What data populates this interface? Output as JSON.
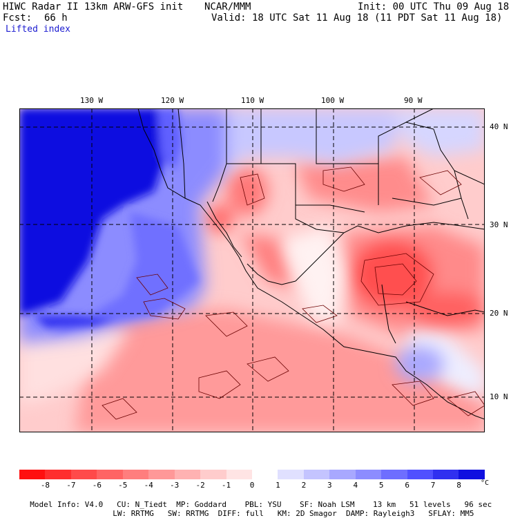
{
  "header": {
    "title": "HIWC Radar II 13km ARW-GFS init",
    "org": "NCAR/MMM",
    "init": "Init: 00 UTC Thu 09 Aug 18",
    "fcst_label": "Fcst:",
    "fcst_value": "66 h",
    "valid": "Valid: 18 UTC Sat 11 Aug 18 (11 PDT Sat 11 Aug 18)",
    "field": "Lifted index"
  },
  "map": {
    "lon_labels": [
      "130 W",
      "120 W",
      "110 W",
      "100 W",
      "90 W"
    ],
    "lat_labels": [
      "40 N",
      "30 N",
      "20 N",
      "10 N"
    ],
    "border_color": "#000000",
    "grid_style": "dashed"
  },
  "colorbar": {
    "labels": [
      "-8",
      "-7",
      "-6",
      "-5",
      "-4",
      "-3",
      "-2",
      "-1",
      "0",
      "1",
      "2",
      "3",
      "4",
      "5",
      "6",
      "7",
      "8"
    ],
    "unit": "°C",
    "colors": [
      "#ff1010",
      "#ff2e2e",
      "#ff4a4a",
      "#ff6464",
      "#ff7e7e",
      "#ff9898",
      "#ffb2b2",
      "#ffcccc",
      "#ffe4e4",
      "#ffffff",
      "#e0e0ff",
      "#c4c4ff",
      "#a8a8ff",
      "#8c8cff",
      "#6e6eff",
      "#5050ff",
      "#3030f0",
      "#1010e0"
    ]
  },
  "footer": {
    "line1": [
      "Model Info: V4.0",
      "CU: N_Tiedt",
      "MP: Goddard",
      "PBL: YSU",
      "SF: Noah LSM",
      "13 km",
      "51 levels",
      "96 sec"
    ],
    "line2": [
      "LW: RRTMG",
      "SW: RRTMG",
      "DIFF: full",
      "KM: 2D Smagor",
      "DAMP: Rayleigh3",
      "SFLAY: MM5"
    ]
  }
}
